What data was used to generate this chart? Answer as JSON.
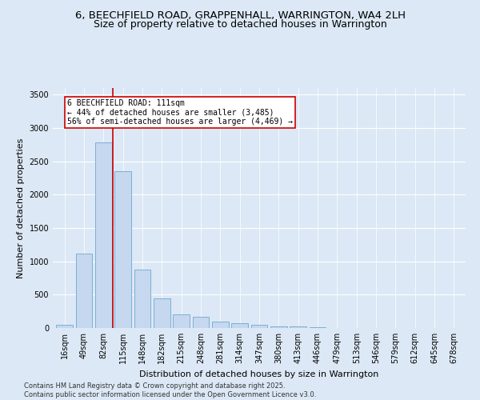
{
  "title_line1": "6, BEECHFIELD ROAD, GRAPPENHALL, WARRINGTON, WA4 2LH",
  "title_line2": "Size of property relative to detached houses in Warrington",
  "xlabel": "Distribution of detached houses by size in Warrington",
  "ylabel": "Number of detached properties",
  "bar_color": "#c5d8ef",
  "bar_edge_color": "#7bafd4",
  "categories": [
    "16sqm",
    "49sqm",
    "82sqm",
    "115sqm",
    "148sqm",
    "182sqm",
    "215sqm",
    "248sqm",
    "281sqm",
    "314sqm",
    "347sqm",
    "380sqm",
    "413sqm",
    "446sqm",
    "479sqm",
    "513sqm",
    "546sqm",
    "579sqm",
    "612sqm",
    "645sqm",
    "678sqm"
  ],
  "values": [
    50,
    1120,
    2780,
    2350,
    880,
    440,
    200,
    165,
    95,
    75,
    50,
    30,
    20,
    10,
    5,
    3,
    2,
    1,
    1,
    0,
    0
  ],
  "ylim": [
    0,
    3600
  ],
  "yticks": [
    0,
    500,
    1000,
    1500,
    2000,
    2500,
    3000,
    3500
  ],
  "vline_x": 2.5,
  "vline_color": "#cc0000",
  "annotation_text": "6 BEECHFIELD ROAD: 111sqm\n← 44% of detached houses are smaller (3,485)\n56% of semi-detached houses are larger (4,469) →",
  "annotation_box_facecolor": "#ffffff",
  "annotation_box_edgecolor": "#cc0000",
  "footer_line1": "Contains HM Land Registry data © Crown copyright and database right 2025.",
  "footer_line2": "Contains public sector information licensed under the Open Government Licence v3.0.",
  "background_color": "#dce8f5",
  "grid_color": "#ffffff",
  "title_fontsize": 9.5,
  "axis_label_fontsize": 8,
  "tick_fontsize": 7,
  "footer_fontsize": 6
}
